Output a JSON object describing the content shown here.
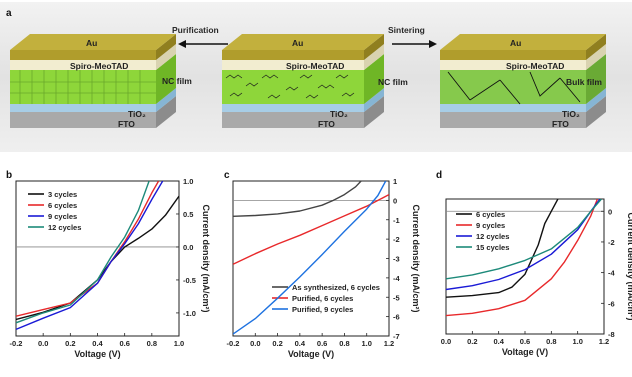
{
  "panel_a": {
    "label": "a",
    "purification": "Purification",
    "sintering": "Sintering",
    "stack_left": {
      "au": "Au",
      "spiro": "Spiro-MeoTAD",
      "nc": "NC film",
      "tio2": "TiO₂",
      "fto": "FTO"
    },
    "stack_mid": {
      "au": "Au",
      "spiro": "Spiro-MeoTAD",
      "nc": "NC film",
      "tio2": "TiO₂",
      "fto": "FTO"
    },
    "stack_right": {
      "au": "Au",
      "spiro": "Spiro-MeoTAD",
      "bulk": "Bulk film",
      "tio2": "TiO₂",
      "fto": "FTO"
    }
  },
  "colors": {
    "gold": "#b8a636",
    "green": "#8ed63a",
    "cream": "#f2edd0",
    "tio2": "#b8d7ea",
    "fto": "#c9c9c9"
  },
  "chart_data": [
    {
      "panel": "b",
      "type": "line",
      "xlabel": "Voltage (V)",
      "ylabel": "Current density (mA/cm²)",
      "xlim": [
        -0.2,
        1.0
      ],
      "ylim": [
        -1.35,
        1.0
      ],
      "xticks": [
        "-0.2",
        "0.0",
        "0.2",
        "0.4",
        "0.6",
        "0.8",
        "1.0"
      ],
      "yticks": [
        "1.0",
        "0.5",
        "0.0",
        "-0.5",
        "-1.0"
      ],
      "ytick_values": [
        1.0,
        0.5,
        0.0,
        -0.5,
        -1.0
      ],
      "xtick_values": [
        -0.2,
        0,
        0.2,
        0.4,
        0.6,
        0.8,
        1.0
      ],
      "zero_line": 0,
      "legend": "top-left",
      "series": [
        {
          "name": "3 cycles",
          "color": "#111111",
          "x": [
            -0.2,
            0.0,
            0.2,
            0.4,
            0.5,
            0.6,
            0.7,
            0.8,
            0.9,
            1.0
          ],
          "y": [
            -1.1,
            -0.99,
            -0.85,
            -0.5,
            -0.22,
            0.0,
            0.13,
            0.27,
            0.48,
            0.77
          ]
        },
        {
          "name": "6 cycles",
          "color": "#e8292b",
          "x": [
            -0.2,
            0.0,
            0.2,
            0.4,
            0.5,
            0.6,
            0.7,
            0.8,
            0.85
          ],
          "y": [
            -1.05,
            -0.95,
            -0.85,
            -0.55,
            -0.22,
            0.08,
            0.42,
            0.82,
            1.0
          ]
        },
        {
          "name": "9 cycles",
          "color": "#1a1ad6",
          "x": [
            -0.2,
            0.0,
            0.2,
            0.4,
            0.5,
            0.6,
            0.7,
            0.8,
            0.88
          ],
          "y": [
            -1.25,
            -1.08,
            -0.92,
            -0.55,
            -0.22,
            0.05,
            0.35,
            0.72,
            1.0
          ]
        },
        {
          "name": "12 cycles",
          "color": "#1d8a7a",
          "x": [
            -0.2,
            0.0,
            0.2,
            0.4,
            0.5,
            0.6,
            0.7,
            0.78
          ],
          "y": [
            -1.15,
            -1.0,
            -0.88,
            -0.5,
            -0.15,
            0.15,
            0.55,
            1.0
          ]
        }
      ]
    },
    {
      "panel": "c",
      "type": "line",
      "xlabel": "Voltage (V)",
      "ylabel": "Current density (mA/cm²)",
      "xlim": [
        -0.2,
        1.2
      ],
      "ylim": [
        -7,
        1
      ],
      "xticks": [
        "-0.2",
        "0.0",
        "0.2",
        "0.4",
        "0.6",
        "0.8",
        "1.0",
        "1.2"
      ],
      "yticks": [
        "1",
        "0",
        "-1",
        "-2",
        "-3",
        "-4",
        "-5",
        "-6",
        "-7"
      ],
      "ytick_values": [
        1,
        0,
        -1,
        -2,
        -3,
        -4,
        -5,
        -6,
        -7
      ],
      "xtick_values": [
        -0.2,
        0,
        0.2,
        0.4,
        0.6,
        0.8,
        1.0,
        1.2
      ],
      "zero_line": 0,
      "legend": "bottom-right",
      "series": [
        {
          "name": "As synthesized, 6 cycles",
          "color": "#444444",
          "x": [
            -0.2,
            0.0,
            0.2,
            0.4,
            0.6,
            0.7,
            0.8,
            0.9,
            0.95
          ],
          "y": [
            -0.82,
            -0.78,
            -0.7,
            -0.55,
            -0.25,
            0.0,
            0.3,
            0.7,
            1.0
          ]
        },
        {
          "name": "Purified, 6 cycles",
          "color": "#e8292b",
          "x": [
            -0.2,
            0.0,
            0.2,
            0.4,
            0.6,
            0.8,
            1.0,
            1.1,
            1.2
          ],
          "y": [
            -3.3,
            -2.75,
            -2.25,
            -1.8,
            -1.3,
            -0.8,
            -0.3,
            0.0,
            0.3
          ]
        },
        {
          "name": "Purified, 9 cycles",
          "color": "#1e72e0",
          "x": [
            -0.2,
            0.0,
            0.2,
            0.4,
            0.6,
            0.8,
            1.0,
            1.1,
            1.17
          ],
          "y": [
            -6.9,
            -6.1,
            -5.05,
            -3.95,
            -2.8,
            -1.6,
            -0.45,
            0.25,
            1.0
          ]
        }
      ]
    },
    {
      "panel": "d",
      "type": "line",
      "xlabel": "Voltage (V)",
      "ylabel": "Current density (mA/cm²)",
      "xlim": [
        0.0,
        1.2
      ],
      "ylim": [
        -8,
        0.8
      ],
      "xticks": [
        "0.0",
        "0.2",
        "0.4",
        "0.6",
        "0.8",
        "1.0",
        "1.2"
      ],
      "yticks": [
        "0",
        "-2",
        "-4",
        "-6",
        "-8"
      ],
      "ytick_values": [
        0,
        -2,
        -4,
        -6,
        -8
      ],
      "xtick_values": [
        0,
        0.2,
        0.4,
        0.6,
        0.8,
        1.0,
        1.2
      ],
      "zero_line": 0,
      "legend": "top-left",
      "series": [
        {
          "name": "6 cycles",
          "color": "#111111",
          "x": [
            0.0,
            0.2,
            0.4,
            0.5,
            0.6,
            0.7,
            0.75,
            0.8,
            0.85
          ],
          "y": [
            -5.6,
            -5.5,
            -5.3,
            -4.95,
            -4.1,
            -2.2,
            -0.8,
            0.0,
            0.8
          ]
        },
        {
          "name": "9 cycles",
          "color": "#e8292b",
          "x": [
            0.0,
            0.2,
            0.4,
            0.6,
            0.8,
            0.9,
            1.0,
            1.1,
            1.15
          ],
          "y": [
            -6.8,
            -6.65,
            -6.35,
            -5.8,
            -4.4,
            -3.3,
            -1.9,
            -0.3,
            0.8
          ]
        },
        {
          "name": "12 cycles",
          "color": "#1a1ad6",
          "x": [
            0.0,
            0.2,
            0.4,
            0.6,
            0.8,
            1.0,
            1.1,
            1.17
          ],
          "y": [
            -5.1,
            -4.85,
            -4.45,
            -3.8,
            -2.8,
            -1.2,
            0.0,
            0.8
          ]
        },
        {
          "name": "15 cycles",
          "color": "#1d8a7a",
          "x": [
            0.0,
            0.2,
            0.4,
            0.6,
            0.8,
            1.0,
            1.1,
            1.18
          ],
          "y": [
            -4.4,
            -4.15,
            -3.75,
            -3.2,
            -2.45,
            -1.05,
            0.0,
            0.8
          ]
        }
      ]
    }
  ]
}
